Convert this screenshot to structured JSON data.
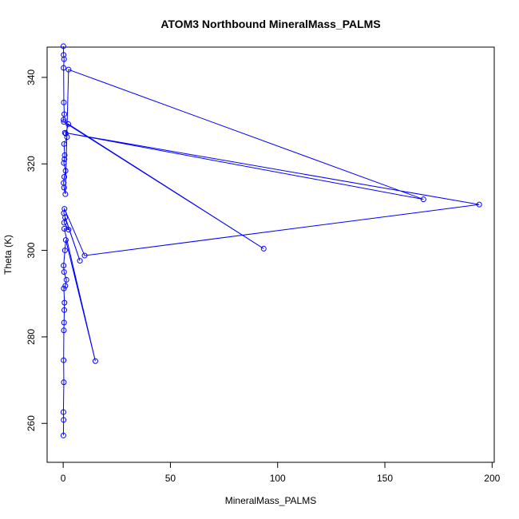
{
  "chart_data": {
    "type": "scatter",
    "title": "ATOM3 Northbound MineralMass_PALMS",
    "xlabel": "MineralMass_PALMS",
    "ylabel": "Theta (K)",
    "xlim": [
      -7.5,
      201
    ],
    "ylim": [
      251,
      347
    ],
    "x_ticks": [
      0,
      50,
      100,
      150,
      200
    ],
    "y_ticks": [
      260,
      280,
      300,
      320,
      340
    ],
    "grid": false,
    "legend": "none",
    "series": [
      {
        "color": "#0000ff",
        "marker": "open-circle",
        "line": true,
        "points": [
          [
            0.1,
            257.2
          ],
          [
            0.2,
            260.8
          ],
          [
            0.1,
            262.6
          ],
          [
            0.3,
            269.5
          ],
          [
            0.2,
            274.6
          ],
          [
            0.3,
            281.5
          ],
          [
            0.4,
            283.3
          ],
          [
            0.5,
            286.2
          ],
          [
            0.6,
            287.9
          ],
          [
            0.3,
            291.2
          ],
          [
            1.0,
            291.8
          ],
          [
            1.5,
            293.2
          ],
          [
            0.4,
            295.0
          ],
          [
            0.2,
            296.5
          ],
          [
            0.8,
            300.0
          ],
          [
            1.2,
            302.4
          ],
          [
            15.0,
            274.4
          ],
          [
            0.5,
            305.0
          ],
          [
            2.5,
            304.8
          ],
          [
            0.4,
            306.4
          ],
          [
            0.9,
            307.6
          ],
          [
            7.8,
            297.6
          ],
          [
            0.3,
            308.6
          ],
          [
            0.6,
            309.6
          ],
          [
            10.0,
            298.8
          ],
          [
            194.0,
            310.6
          ],
          [
            0.8,
            327.2
          ],
          [
            168.0,
            311.8
          ],
          [
            2.5,
            341.8
          ],
          [
            1.0,
            313.0
          ],
          [
            0.4,
            314.5
          ],
          [
            0.2,
            315.6
          ],
          [
            0.5,
            317.0
          ],
          [
            1.1,
            318.4
          ],
          [
            0.3,
            320.2
          ],
          [
            0.6,
            321.1
          ],
          [
            0.7,
            322.0
          ],
          [
            0.4,
            324.6
          ],
          [
            1.8,
            326.2
          ],
          [
            1.2,
            327.0
          ],
          [
            2.4,
            329.2
          ],
          [
            93.5,
            300.4
          ],
          [
            0.3,
            329.7
          ],
          [
            0.2,
            330.2
          ],
          [
            0.5,
            331.5
          ],
          [
            0.3,
            334.2
          ],
          [
            0.2,
            342.2
          ],
          [
            0.4,
            344.2
          ],
          [
            0.2,
            345.2
          ],
          [
            0.1,
            347.2
          ]
        ]
      }
    ]
  }
}
